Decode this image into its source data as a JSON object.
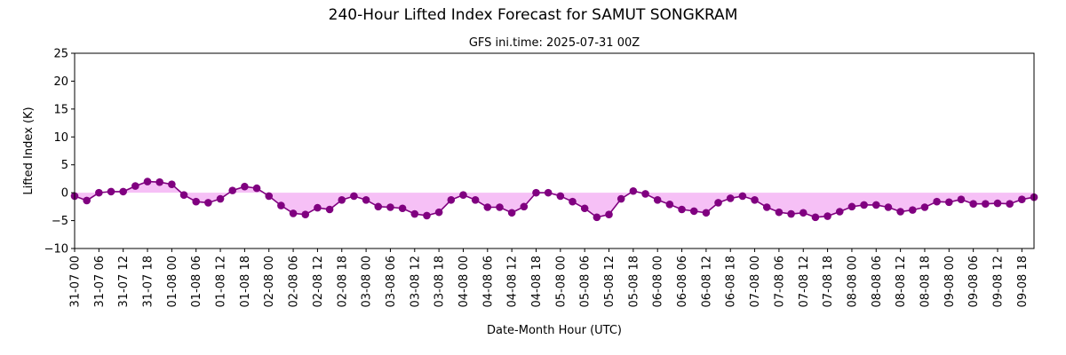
{
  "chart_data": {
    "type": "line",
    "title": "240-Hour Lifted Index Forecast for SAMUT SONGKRAM",
    "subtitle": "GFS ini.time: 2025-07-31 00Z",
    "xlabel": "Date-Month Hour (UTC)",
    "ylabel": "Lifted Index (K)",
    "ylim": [
      -10,
      25
    ],
    "yticks": [
      -10,
      -5,
      0,
      5,
      10,
      15,
      20,
      25
    ],
    "xticks": [
      "31-07 00",
      "31-07 06",
      "31-07 12",
      "31-07 18",
      "01-08 00",
      "01-08 06",
      "01-08 12",
      "01-08 18",
      "02-08 00",
      "02-08 06",
      "02-08 12",
      "02-08 18",
      "03-08 00",
      "03-08 06",
      "03-08 12",
      "03-08 18",
      "04-08 00",
      "04-08 06",
      "04-08 12",
      "04-08 18",
      "05-08 00",
      "05-08 06",
      "05-08 12",
      "05-08 18",
      "06-08 00",
      "06-08 06",
      "06-08 12",
      "06-08 18",
      "07-08 00",
      "07-08 06",
      "07-08 12",
      "07-08 18",
      "08-08 00",
      "08-08 06",
      "08-08 12",
      "08-08 18",
      "09-08 00",
      "09-08 06",
      "09-08 12",
      "09-08 18"
    ],
    "x_step_hours": 3,
    "fill_to_zero": true,
    "grid": false,
    "colors": {
      "line": "#800080",
      "marker": "#800080",
      "fill": "#ee82ee"
    },
    "values": [
      -0.6,
      -1.4,
      0.0,
      0.2,
      0.2,
      1.2,
      2.0,
      1.9,
      1.5,
      -0.4,
      -1.6,
      -1.8,
      -1.1,
      0.4,
      1.1,
      0.8,
      -0.6,
      -2.3,
      -3.7,
      -3.9,
      -2.7,
      -3.0,
      -1.3,
      -0.6,
      -1.3,
      -2.5,
      -2.6,
      -2.8,
      -3.8,
      -4.1,
      -3.5,
      -1.3,
      -0.4,
      -1.3,
      -2.6,
      -2.6,
      -3.6,
      -2.5,
      0.0,
      0.0,
      -0.6,
      -1.6,
      -2.8,
      -4.4,
      -3.9,
      -1.1,
      0.3,
      -0.2,
      -1.3,
      -2.1,
      -3.0,
      -3.3,
      -3.6,
      -1.8,
      -1.0,
      -0.6,
      -1.3,
      -2.6,
      -3.5,
      -3.8,
      -3.6,
      -4.4,
      -4.2,
      -3.4,
      -2.5,
      -2.2,
      -2.2,
      -2.6,
      -3.4,
      -3.1,
      -2.6,
      -1.6,
      -1.7,
      -1.2,
      -2.0,
      -2.0,
      -1.9,
      -2.0,
      -1.2,
      -0.8
    ]
  }
}
